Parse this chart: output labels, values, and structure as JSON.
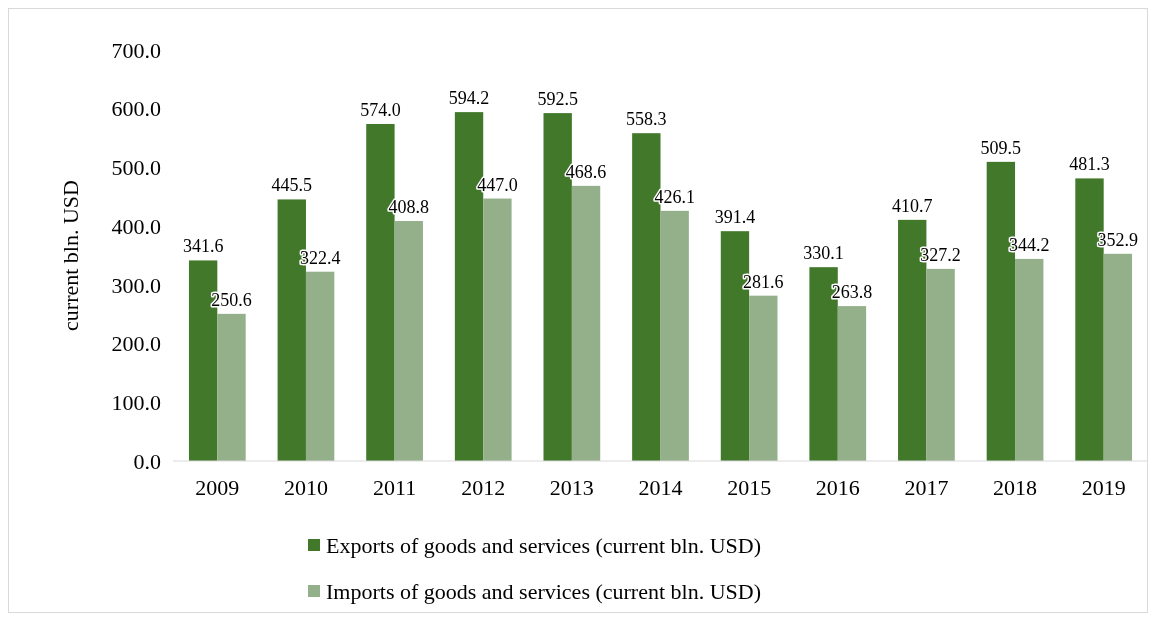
{
  "chart_data": {
    "type": "bar",
    "ylabel": "current bln. USD",
    "categories": [
      "2009",
      "2010",
      "2011",
      "2012",
      "2013",
      "2014",
      "2015",
      "2016",
      "2017",
      "2018",
      "2019"
    ],
    "series": [
      {
        "name": "Exports of goods and services (current bln. USD)",
        "color": "#41782a",
        "values": [
          341.6,
          445.5,
          574.0,
          594.2,
          592.5,
          558.3,
          391.4,
          330.1,
          410.7,
          509.5,
          481.3
        ],
        "value_labels": [
          "341.6",
          "445.5",
          "574.0",
          "594.2",
          "592.5",
          "558.3",
          "391.4",
          "330.1",
          "410.7",
          "509.5",
          "481.3"
        ]
      },
      {
        "name": "Imports of goods and services (current bln. USD)",
        "color": "#93b08a",
        "values": [
          250.6,
          322.4,
          408.8,
          447.0,
          468.6,
          426.1,
          281.6,
          263.8,
          327.2,
          344.2,
          352.9
        ],
        "value_labels": [
          "250.6",
          "322.4",
          "408.8",
          "447.0",
          "468.6",
          "426.1",
          "281.6",
          "263.8",
          "327.2",
          "344.2",
          "352.9"
        ]
      }
    ],
    "ylim": [
      0,
      700
    ],
    "yticks": [
      {
        "value": 0,
        "label": "0.0"
      },
      {
        "value": 100,
        "label": "100.0"
      },
      {
        "value": 200,
        "label": "200.0"
      },
      {
        "value": 300,
        "label": "300.0"
      },
      {
        "value": 400,
        "label": "400.0"
      },
      {
        "value": 500,
        "label": "500.0"
      },
      {
        "value": 600,
        "label": "600.0"
      },
      {
        "value": 700,
        "label": "700.0"
      }
    ],
    "legend": "bottom",
    "grid": false
  }
}
